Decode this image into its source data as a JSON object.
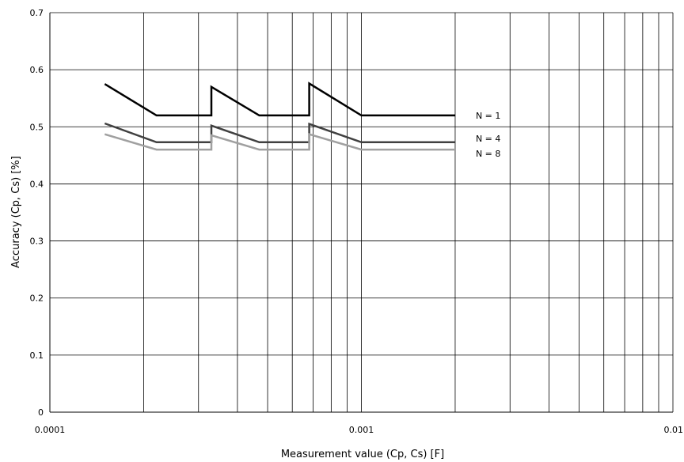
{
  "chart_data": {
    "type": "line",
    "xlabel": "Measurement value (Cp, Cs) [F]",
    "ylabel": "Accuracy (Cp, Cs) [%]",
    "xscale": "log",
    "xlim": [
      0.0001,
      0.01
    ],
    "ylim": [
      0,
      0.7
    ],
    "grid": true,
    "x_ticks": [
      {
        "value": 0.0001,
        "label": "0.0001"
      },
      {
        "value": 0.001,
        "label": "0.001"
      },
      {
        "value": 0.01,
        "label": "0.01"
      }
    ],
    "y_ticks": [
      {
        "value": 0,
        "label": "0"
      },
      {
        "value": 0.1,
        "label": "0.1"
      },
      {
        "value": 0.2,
        "label": "0.2"
      },
      {
        "value": 0.3,
        "label": "0.3"
      },
      {
        "value": 0.4,
        "label": "0.4"
      },
      {
        "value": 0.5,
        "label": "0.5"
      },
      {
        "value": 0.6,
        "label": "0.6"
      },
      {
        "value": 0.7,
        "label": "0.7"
      }
    ],
    "series": [
      {
        "name": "N = 1",
        "color": "#000000",
        "points": [
          [
            0.00015,
            0.575
          ],
          [
            0.00022,
            0.52
          ],
          [
            0.00033,
            0.52
          ],
          [
            0.00033,
            0.57
          ],
          [
            0.00047,
            0.52
          ],
          [
            0.00068,
            0.52
          ],
          [
            0.00068,
            0.576
          ],
          [
            0.001,
            0.52
          ],
          [
            0.002,
            0.52
          ]
        ]
      },
      {
        "name": "N = 4",
        "color": "#404040",
        "points": [
          [
            0.00015,
            0.506
          ],
          [
            0.00022,
            0.473
          ],
          [
            0.00033,
            0.473
          ],
          [
            0.00033,
            0.502
          ],
          [
            0.00047,
            0.473
          ],
          [
            0.00068,
            0.473
          ],
          [
            0.00068,
            0.505
          ],
          [
            0.001,
            0.473
          ],
          [
            0.002,
            0.473
          ]
        ]
      },
      {
        "name": "N = 8",
        "color": "#a0a0a0",
        "points": [
          [
            0.00015,
            0.487
          ],
          [
            0.00022,
            0.46
          ],
          [
            0.00033,
            0.46
          ],
          [
            0.00033,
            0.485
          ],
          [
            0.00047,
            0.46
          ],
          [
            0.00068,
            0.46
          ],
          [
            0.00068,
            0.487
          ],
          [
            0.001,
            0.46
          ],
          [
            0.002,
            0.46
          ]
        ]
      }
    ]
  }
}
